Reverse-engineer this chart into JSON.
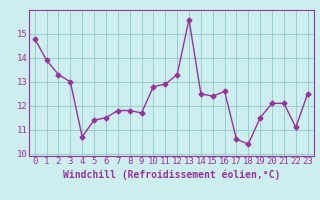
{
  "x": [
    0,
    1,
    2,
    3,
    4,
    5,
    6,
    7,
    8,
    9,
    10,
    11,
    12,
    13,
    14,
    15,
    16,
    17,
    18,
    19,
    20,
    21,
    22,
    23
  ],
  "y": [
    14.8,
    13.9,
    13.3,
    13.0,
    10.7,
    11.4,
    11.5,
    11.8,
    11.8,
    11.7,
    12.8,
    12.9,
    13.3,
    15.6,
    12.5,
    12.4,
    12.6,
    10.6,
    10.4,
    11.5,
    12.1,
    12.1,
    11.1,
    12.5
  ],
  "color": "#993399",
  "bg_color": "#cceeee",
  "grid_color": "#99cccc",
  "ylim": [
    9.9,
    16.0
  ],
  "xlim": [
    -0.5,
    23.5
  ],
  "yticks": [
    10,
    11,
    12,
    13,
    14,
    15
  ],
  "xtick_labels": [
    "0",
    "1",
    "2",
    "3",
    "4",
    "5",
    "6",
    "7",
    "8",
    "9",
    "10",
    "11",
    "12",
    "13",
    "14",
    "15",
    "16",
    "17",
    "18",
    "19",
    "20",
    "21",
    "22",
    "23"
  ],
  "xlabel": "Windchill (Refroidissement éolien,°C)",
  "xlabel_fontsize": 7,
  "tick_fontsize": 6.5,
  "marker": "D",
  "marker_size": 2.5,
  "linewidth": 1.0
}
